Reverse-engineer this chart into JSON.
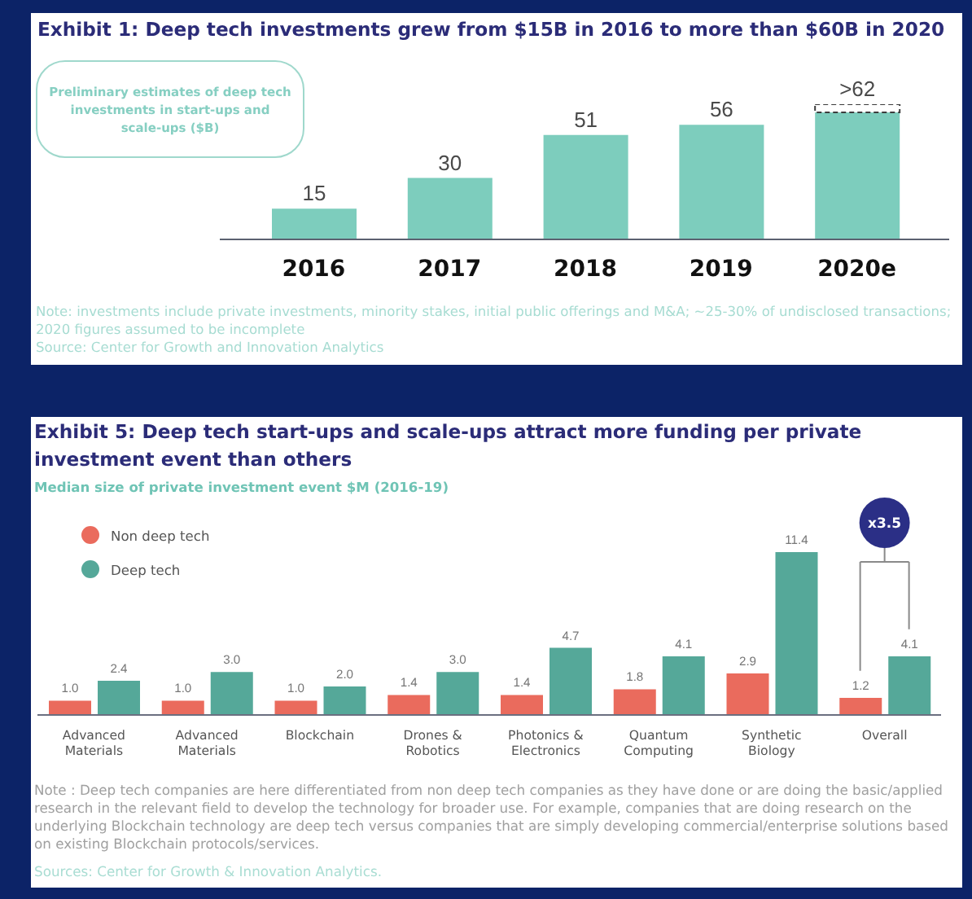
{
  "chart_data": [
    {
      "type": "bar",
      "title": "Exhibit 1: Deep tech investments grew from $15B in 2016 to more than $60B in 2020",
      "subtitle": "Preliminary estimates of deep tech investments in start-ups and scale-ups ($B)",
      "categories": [
        "2016",
        "2017",
        "2018",
        "2019",
        "2020e"
      ],
      "stacked": true,
      "series": [
        {
          "color": "#7dcdbd",
          "values": [
            15,
            30,
            51,
            56,
            62
          ],
          "value_labels": [
            "15",
            "30",
            "51",
            "56",
            ">62"
          ]
        },
        {
          "color": "#3c3c3c",
          "line_style": "dashed",
          "values": [
            null,
            null,
            null,
            null,
            4
          ]
        }
      ],
      "annotations": [
        "Note: investments include private investments, minority stakes, initial public offerings and M&A; ~25-30% of undisclosed transactions; 2020 figures assumed to be incomplete",
        "Source: Center for Growth and Innovation Analytics"
      ]
    },
    {
      "type": "bar",
      "title": "Exhibit 5: Deep tech start-ups and scale-ups attract more funding per private investment event than others",
      "subtitle": "Median size of private investment event $M (2016-19)",
      "categories": [
        "Advanced Materials",
        "Advanced Materials",
        "Blockchain",
        "Drones & Robotics",
        "Photonics & Electronics",
        "Quantum Computing",
        "Synthetic Biology",
        "Overall"
      ],
      "series": [
        {
          "name": "Non deep tech",
          "color": "#ea6b5d",
          "values": [
            1.0,
            1.0,
            1.0,
            1.4,
            1.4,
            1.8,
            2.9,
            1.2
          ],
          "value_labels": [
            "1.0",
            "1.0",
            "1.0",
            "1.4",
            "1.4",
            "1.8",
            "2.9",
            "1.2"
          ]
        },
        {
          "name": "Deep tech",
          "color": "#55a899",
          "values": [
            2.4,
            3.0,
            2.0,
            3.0,
            4.7,
            4.1,
            11.4,
            4.1
          ],
          "value_labels": [
            "2.4",
            "3.0",
            "2.0",
            "3.0",
            "4.7",
            "4.1",
            "11.4",
            "4.1"
          ]
        }
      ],
      "legend": "top left",
      "annotations": [
        {
          "text": "x3.5",
          "x": "Overall"
        },
        "Note : Deep tech companies are here differentiated from non deep tech companies as they have done or are doing the basic/applied research in the relevant field to develop the technology for broader use. For example, companies that are doing research on the underlying Blockchain technology are deep tech versus companies that are simply developing commercial/enterprise solutions based on existing Blockchain protocols/services.",
        "Sources: Center for Growth & Innovation Analytics."
      ]
    }
  ]
}
